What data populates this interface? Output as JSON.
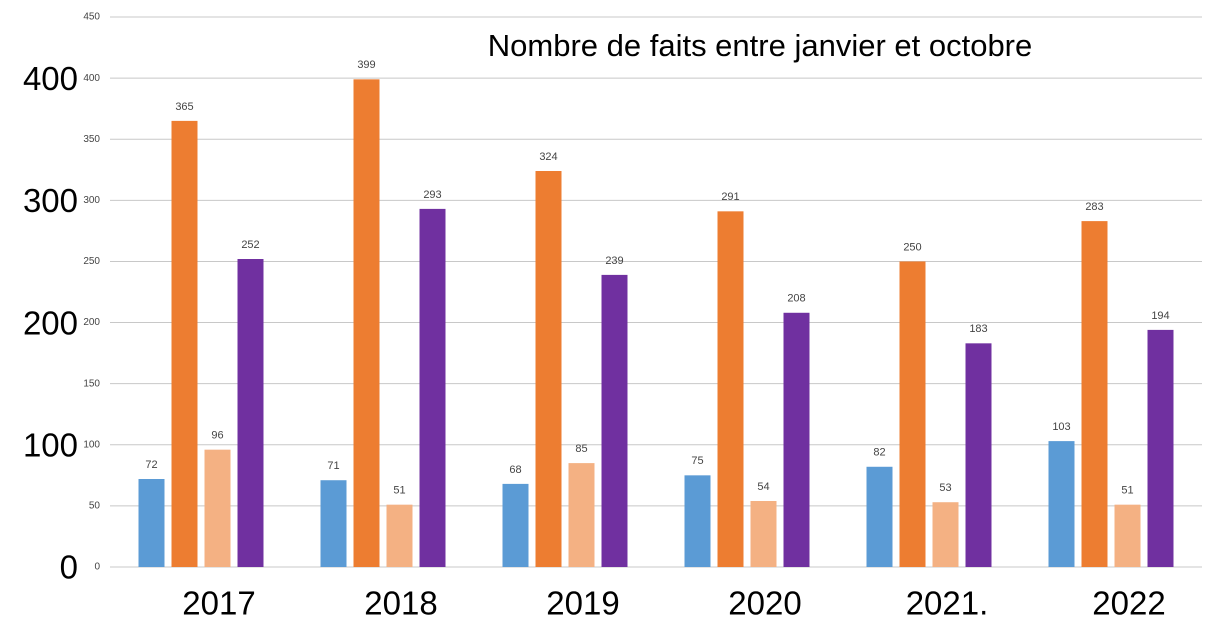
{
  "chart_data": {
    "type": "bar",
    "title": "Nombre de faits entre  janvier  et octobre",
    "categories": [
      "2017",
      "2018",
      "2019",
      "2020",
      "2021.",
      "2022"
    ],
    "series": [
      {
        "color": "#5b9bd5",
        "values": [
          72,
          71,
          68,
          75,
          82,
          103
        ]
      },
      {
        "color": "#ed7d31",
        "values": [
          365,
          399,
          324,
          291,
          250,
          283
        ]
      },
      {
        "color": "#f4b183",
        "values": [
          96,
          51,
          85,
          54,
          53,
          51
        ]
      },
      {
        "color": "#7030a0",
        "values": [
          252,
          293,
          239,
          208,
          183,
          194
        ]
      }
    ],
    "ylim": [
      0,
      450
    ],
    "yticks": [
      0,
      50,
      100,
      150,
      200,
      250,
      300,
      350,
      400,
      450
    ],
    "y2lim": [
      0,
      450
    ],
    "y2ticks": [
      0,
      100,
      200,
      300,
      400
    ],
    "grid": true
  }
}
